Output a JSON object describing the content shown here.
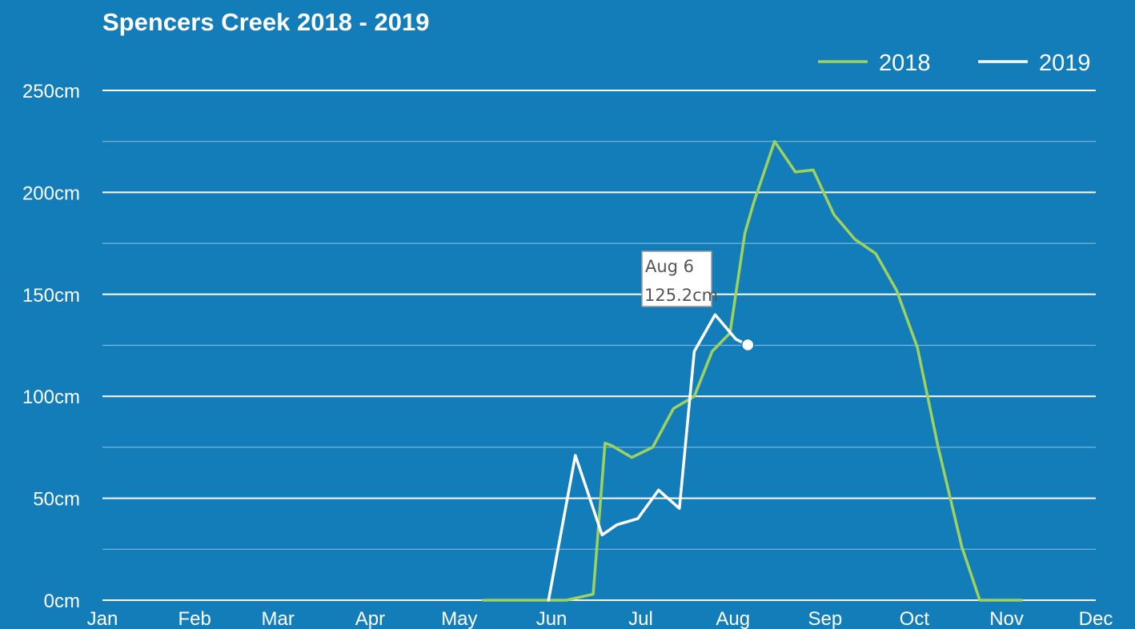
{
  "chart_data": {
    "type": "line",
    "title": "Spencers Creek 2018 - 2019",
    "xlabel": "",
    "ylabel": "",
    "unit": "cm",
    "x_ticks": [
      "Jan",
      "Feb",
      "Mar",
      "Apr",
      "May",
      "Jun",
      "Jul",
      "Aug",
      "Sep",
      "Oct",
      "Nov",
      "Dec"
    ],
    "y_ticks": [
      "0cm",
      "50cm",
      "100cm",
      "150cm",
      "200cm",
      "250cm"
    ],
    "ylim": [
      0,
      250
    ],
    "xlim_day_of_year": [
      1,
      335
    ],
    "grid": true,
    "legend_position": "top-right",
    "series": [
      {
        "name": "2018",
        "color": "#9fd25c",
        "day_of_year": [
          129,
          145,
          157,
          166,
          170,
          172,
          179,
          186,
          193,
          200,
          206,
          212,
          217,
          220,
          227,
          234,
          240,
          247,
          254,
          261,
          268,
          275,
          282,
          290,
          296,
          303,
          310
        ],
        "values": [
          0,
          0,
          0,
          3,
          77,
          76,
          70,
          75,
          94,
          100,
          122,
          131,
          180,
          195,
          225,
          210,
          211,
          189,
          177,
          170,
          152,
          124,
          75,
          26,
          0,
          0,
          0
        ]
      },
      {
        "name": "2019",
        "color": "#ffffff",
        "day_of_year": [
          151,
          160,
          169,
          174,
          181,
          188,
          195,
          200,
          207,
          214,
          218
        ],
        "values": [
          0,
          71,
          32,
          37,
          40,
          54,
          45,
          122,
          140,
          128,
          125.2
        ]
      }
    ],
    "tooltip": {
      "date": "Aug 6",
      "value": "125.2cm",
      "series": "2019",
      "day_of_year": 218,
      "y": 125.2
    }
  }
}
